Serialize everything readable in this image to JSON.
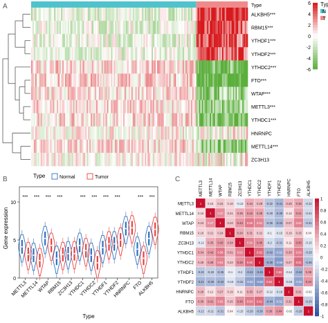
{
  "panels": {
    "A": "A",
    "B": "B",
    "C": "C"
  },
  "colors": {
    "normal": "#2c6fbf",
    "tumor": "#e8403c",
    "type_N": "#4fc3cd",
    "type_T": "#f08a8a",
    "heat_high": "#d7191c",
    "heat_mid": "#ffffff",
    "heat_low": "#5aae3a",
    "corr_pos": "#c8102e",
    "corr_neg": "#2c4fa0"
  },
  "chart_data": [
    {
      "type": "heatmap",
      "panel": "A",
      "genes": [
        "ALKBH5***",
        "RBM15***",
        "YTHDF1***",
        "YTHDF2***",
        "YTHDC2***",
        "FTO***",
        "WTAP***",
        "METTL3***",
        "YTHDC1***",
        "HNRNPC",
        "METTL14***",
        "ZC3H13"
      ],
      "gene_bias": [
        1.8,
        1.5,
        1.3,
        1.4,
        -1.5,
        -2.0,
        -1.1,
        -1.3,
        -1.2,
        -0.1,
        -1.3,
        0.0
      ],
      "scale_ticks": [
        "6",
        "4",
        "2",
        "0",
        "-2",
        "-4",
        "-6"
      ],
      "legend_title": "Type",
      "legend": [
        {
          "label": "N"
        },
        {
          "label": "T"
        }
      ],
      "legend_label": "Type",
      "normal_fraction": 0.765
    },
    {
      "type": "violin",
      "panel": "B",
      "legend_title": "Type",
      "legend": [
        {
          "label": "Normal"
        },
        {
          "label": "Tumor"
        }
      ],
      "xlabel": "Type",
      "ylabel": "Gene expression",
      "ylim": [
        0,
        12
      ],
      "yticks": [
        "0",
        "5",
        "10"
      ],
      "categories": [
        "METTL3",
        "METTL14",
        "WTAP",
        "RBM15",
        "ZC3H13",
        "YTHDC1",
        "YTHDC2",
        "YTHDF1",
        "YTHDF2",
        "HNRNPC",
        "FTO",
        "ALKBH5"
      ],
      "significance": [
        "***",
        "***",
        "***",
        "***",
        "",
        "***",
        "***",
        "***",
        "***",
        "",
        "***",
        "***"
      ],
      "series": [
        {
          "name": "Normal",
          "medians": [
            4.1,
            3.0,
            5.2,
            2.6,
            3.2,
            4.3,
            3.0,
            4.0,
            4.5,
            6.5,
            3.8,
            5.2
          ]
        },
        {
          "name": "Tumor",
          "medians": [
            3.1,
            2.3,
            4.3,
            3.1,
            3.2,
            3.6,
            2.0,
            4.5,
            5.0,
            6.6,
            2.6,
            6.4
          ]
        }
      ]
    },
    {
      "type": "heatmap",
      "panel": "C",
      "labels": [
        "METTL3",
        "METTL14",
        "WTAP",
        "RBM15",
        "ZC3H13",
        "YTHDC1",
        "YTHDC2",
        "YTHDF1",
        "YTHDF2",
        "HNRNPC",
        "FTO",
        "ALKBH5"
      ],
      "matrix": [
        [
          1,
          0.15,
          0.24,
          0.18,
          -0.12,
          0.34,
          0.28,
          -0.32,
          -0.41,
          0.28,
          0.36,
          -0.22
        ],
        [
          0.15,
          1,
          0.47,
          0.21,
          0.35,
          0.42,
          0.38,
          -0.28,
          -0.39,
          0.12,
          0.41,
          -0.21
        ],
        [
          0.24,
          0.47,
          1,
          0.24,
          0.43,
          0.56,
          0.51,
          -0.35,
          -0.42,
          0.27,
          0.52,
          -0.31
        ],
        [
          0.18,
          0.21,
          0.24,
          1,
          0.34,
          0.31,
          0.22,
          -0.1,
          -0.15,
          0.19,
          0.25,
          0.04
        ],
        [
          -0.12,
          0.35,
          0.43,
          0.34,
          1,
          0.52,
          0.45,
          -0.2,
          -0.31,
          0.11,
          0.45,
          -0.15
        ],
        [
          0.34,
          0.42,
          0.56,
          0.31,
          0.52,
          1,
          0.62,
          -0.42,
          -0.52,
          0.33,
          0.54,
          -0.28
        ],
        [
          0.28,
          0.38,
          0.51,
          0.22,
          0.45,
          0.62,
          1,
          -0.45,
          -0.58,
          0.27,
          0.61,
          -0.36
        ],
        [
          -0.32,
          -0.28,
          -0.35,
          -0.1,
          -0.2,
          -0.42,
          -0.45,
          1,
          0.62,
          -0.12,
          -0.44,
          0.38
        ],
        [
          -0.41,
          -0.39,
          -0.42,
          -0.15,
          -0.31,
          -0.52,
          -0.58,
          0.62,
          1,
          -0.18,
          -0.52,
          0.44
        ],
        [
          0.28,
          0.12,
          0.27,
          0.19,
          0.11,
          0.33,
          0.27,
          -0.12,
          -0.18,
          1,
          0.31,
          -0.02
        ],
        [
          0.36,
          0.41,
          0.52,
          0.25,
          0.45,
          0.54,
          0.61,
          -0.44,
          -0.52,
          0.31,
          1,
          -0.29
        ],
        [
          -0.22,
          -0.21,
          -0.31,
          0.04,
          -0.15,
          -0.28,
          -0.36,
          0.38,
          0.44,
          -0.02,
          -0.29,
          1
        ]
      ],
      "scale_ticks": [
        "1",
        "0.8",
        "0.6",
        "0.4",
        "0.2",
        "0",
        "-0.2",
        "-0.4",
        "-0.6",
        "-0.8",
        "-1"
      ]
    }
  ]
}
